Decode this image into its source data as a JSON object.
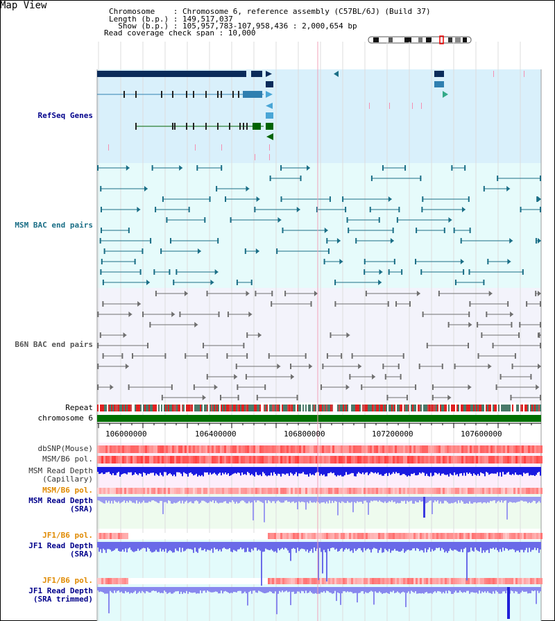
{
  "header": {
    "title": "Map View",
    "info_lines": [
      "Chromosome    : Chromosome 6, reference assembly (C57BL/6J) (Build 37)",
      "Length (b.p.) : 149,517,037",
      "  Show (b.p.) : 105,957,783-107,958,436 : 2,000,654 bp",
      "Read coverage check span : 10,000"
    ]
  },
  "tracks": {
    "refseq": "RefSeq Genes",
    "msm_bac": "MSM BAC end pairs",
    "b6n_bac": "B6N BAC end pairs",
    "repeat": "Repeat",
    "chromosome": "chromosome 6",
    "dbsnp": "dbSNP(Mouse)",
    "msm_b6_pol": "MSM/B6 pol.",
    "msm_depth_cap": "MSM Read Depth\n(Capillary)",
    "msm_b6_pol2": "MSM/B6 pol.",
    "msm_depth_sra": "MSM Read Depth\n(SRA)",
    "jf1_b6_pol": "JF1/B6 pol.",
    "jf1_depth_sra": "JF1 Read Depth\n(SRA)",
    "jf1_b6_pol2": "JF1/B6 pol.",
    "jf1_depth_trim": "JF1 Read Depth\n(SRA trimmed)"
  },
  "axis_ticks": [
    "106000000",
    "106400000",
    "106800000",
    "107200000",
    "107600000"
  ],
  "colors": {
    "refseq_bg": "#d9f0fb",
    "msm_bg": "#e6fbfb",
    "b6n_bg": "#f3f3fb",
    "refseq_dark": "#0a2b5a",
    "refseq_green": "#006400",
    "msm_line": "#1a6e86",
    "b6n_line": "#6f6f6f",
    "label_blue": "#00008b",
    "label_orange": "#e08a00",
    "chrom_green": "#007000"
  }
}
